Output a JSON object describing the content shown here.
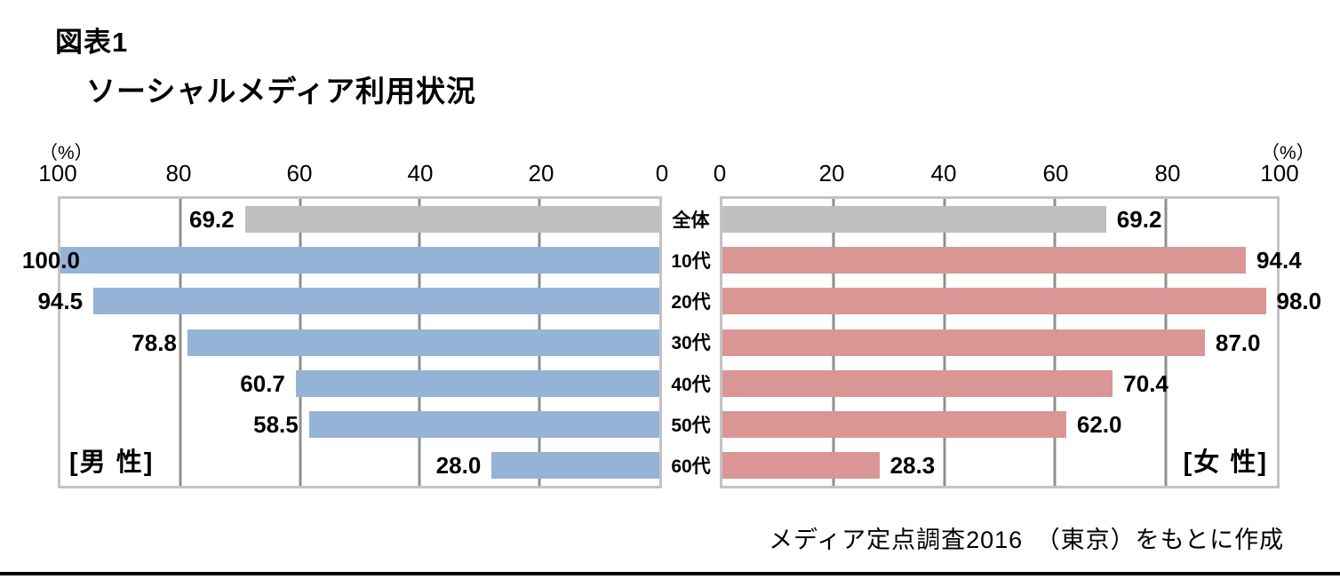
{
  "header": {
    "figure_label": "図表1",
    "title": "ソーシャルメディア利用状況"
  },
  "axes": {
    "unit_label": "（%）",
    "male_ticks": [
      100,
      80,
      60,
      40,
      20,
      0
    ],
    "female_ticks": [
      0,
      20,
      40,
      60,
      80,
      100
    ],
    "xlim": [
      0,
      100
    ],
    "grid": true
  },
  "panels": {
    "male_label": "[男 性]",
    "female_label": "[女 性]"
  },
  "source_note": "メディア定点調査2016　（東京）をもとに作成",
  "colors": {
    "male_bar": "#95B3D7",
    "female_bar": "#D99694",
    "overall_bar": "#BFBFBF",
    "gridline": "#8F8F8F",
    "plot_border": "#C3C3C3",
    "bottom_rule": "#000000"
  },
  "chart_data": {
    "type": "bar",
    "orientation": "horizontal-paired",
    "title": "ソーシャルメディア利用状況",
    "categories": [
      "全体",
      "10代",
      "20代",
      "30代",
      "40代",
      "50代",
      "60代"
    ],
    "series": [
      {
        "name": "男性",
        "values": [
          69.2,
          100.0,
          94.5,
          78.8,
          60.7,
          58.5,
          28.0
        ]
      },
      {
        "name": "女性",
        "values": [
          69.2,
          94.4,
          98.0,
          87.0,
          70.4,
          62.0,
          28.3
        ]
      }
    ],
    "xlabel": "（%）",
    "xlim": [
      0,
      100
    ],
    "grid": true,
    "legend_position": "none",
    "value_label_decimals": 1
  }
}
